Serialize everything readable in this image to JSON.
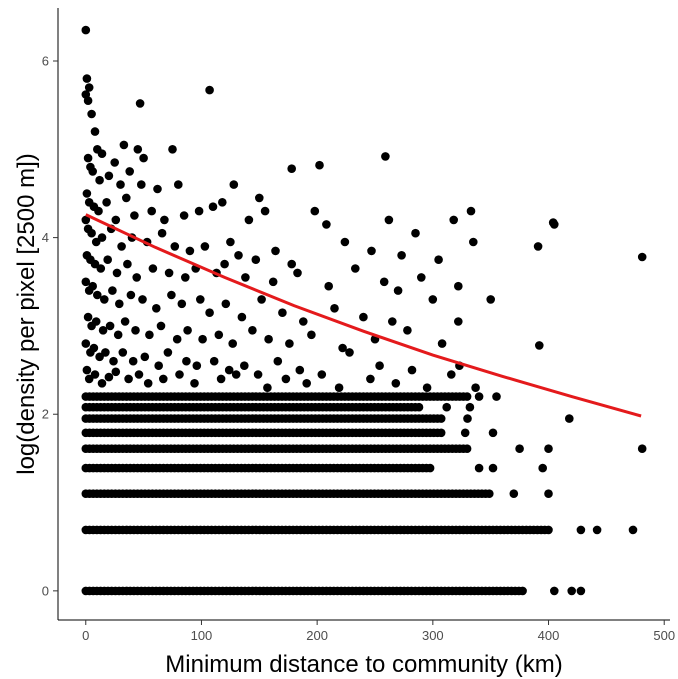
{
  "chart_data": {
    "type": "scatter",
    "title": "",
    "xlabel": "Minimum distance to community (km)",
    "ylabel": "log(density per pixel [2500 m])",
    "xlim": [
      -24,
      505
    ],
    "ylim": [
      -0.33,
      6.6
    ],
    "x_ticks": [
      0,
      100,
      200,
      300,
      400,
      500
    ],
    "y_ticks": [
      0,
      2,
      4,
      6
    ],
    "grid": false,
    "legend": "none",
    "point_color": "#000000",
    "fit_color": "#e41a1c",
    "points": [
      [
        0,
        6.35
      ],
      [
        1,
        5.8
      ],
      [
        3,
        5.7
      ],
      [
        0,
        5.62
      ],
      [
        2,
        5.55
      ],
      [
        5,
        5.4
      ],
      [
        8,
        5.2
      ],
      [
        47,
        5.52
      ],
      [
        107,
        5.67
      ],
      [
        10,
        5.0
      ],
      [
        14,
        4.95
      ],
      [
        25,
        4.85
      ],
      [
        33,
        5.05
      ],
      [
        45,
        5.0
      ],
      [
        50,
        4.9
      ],
      [
        75,
        5.0
      ],
      [
        178,
        4.78
      ],
      [
        202,
        4.82
      ],
      [
        259,
        4.92
      ],
      [
        2,
        4.9
      ],
      [
        4,
        4.8
      ],
      [
        6,
        4.75
      ],
      [
        12,
        4.65
      ],
      [
        20,
        4.7
      ],
      [
        30,
        4.6
      ],
      [
        38,
        4.75
      ],
      [
        48,
        4.6
      ],
      [
        62,
        4.55
      ],
      [
        80,
        4.6
      ],
      [
        128,
        4.6
      ],
      [
        150,
        4.45
      ],
      [
        1,
        4.5
      ],
      [
        3,
        4.4
      ],
      [
        7,
        4.35
      ],
      [
        11,
        4.3
      ],
      [
        18,
        4.4
      ],
      [
        26,
        4.2
      ],
      [
        35,
        4.45
      ],
      [
        42,
        4.25
      ],
      [
        57,
        4.3
      ],
      [
        68,
        4.2
      ],
      [
        85,
        4.25
      ],
      [
        98,
        4.3
      ],
      [
        110,
        4.35
      ],
      [
        118,
        4.4
      ],
      [
        141,
        4.2
      ],
      [
        155,
        4.3
      ],
      [
        198,
        4.3
      ],
      [
        208,
        4.15
      ],
      [
        262,
        4.2
      ],
      [
        285,
        4.05
      ],
      [
        318,
        4.2
      ],
      [
        333,
        4.3
      ],
      [
        404,
        4.17
      ],
      [
        405,
        4.15
      ],
      [
        481,
        3.78
      ],
      [
        0,
        4.2
      ],
      [
        2,
        4.1
      ],
      [
        5,
        4.05
      ],
      [
        9,
        3.95
      ],
      [
        14,
        4.0
      ],
      [
        22,
        4.1
      ],
      [
        31,
        3.9
      ],
      [
        40,
        4.0
      ],
      [
        53,
        3.95
      ],
      [
        66,
        4.05
      ],
      [
        77,
        3.9
      ],
      [
        90,
        3.85
      ],
      [
        103,
        3.9
      ],
      [
        125,
        3.95
      ],
      [
        132,
        3.8
      ],
      [
        147,
        3.75
      ],
      [
        164,
        3.85
      ],
      [
        178,
        3.7
      ],
      [
        224,
        3.95
      ],
      [
        247,
        3.85
      ],
      [
        273,
        3.8
      ],
      [
        305,
        3.75
      ],
      [
        335,
        3.95
      ],
      [
        391,
        3.9
      ],
      [
        1,
        3.8
      ],
      [
        4,
        3.75
      ],
      [
        8,
        3.7
      ],
      [
        13,
        3.65
      ],
      [
        19,
        3.75
      ],
      [
        27,
        3.6
      ],
      [
        36,
        3.7
      ],
      [
        44,
        3.55
      ],
      [
        58,
        3.65
      ],
      [
        72,
        3.6
      ],
      [
        86,
        3.55
      ],
      [
        95,
        3.65
      ],
      [
        113,
        3.6
      ],
      [
        120,
        3.7
      ],
      [
        138,
        3.55
      ],
      [
        162,
        3.5
      ],
      [
        183,
        3.6
      ],
      [
        210,
        3.45
      ],
      [
        233,
        3.65
      ],
      [
        258,
        3.5
      ],
      [
        270,
        3.4
      ],
      [
        290,
        3.55
      ],
      [
        322,
        3.45
      ],
      [
        350,
        3.3
      ],
      [
        0,
        3.5
      ],
      [
        3,
        3.4
      ],
      [
        6,
        3.45
      ],
      [
        10,
        3.35
      ],
      [
        16,
        3.3
      ],
      [
        23,
        3.4
      ],
      [
        29,
        3.25
      ],
      [
        39,
        3.35
      ],
      [
        49,
        3.3
      ],
      [
        61,
        3.2
      ],
      [
        74,
        3.35
      ],
      [
        83,
        3.25
      ],
      [
        99,
        3.3
      ],
      [
        107,
        3.15
      ],
      [
        121,
        3.25
      ],
      [
        135,
        3.1
      ],
      [
        152,
        3.3
      ],
      [
        170,
        3.15
      ],
      [
        188,
        3.05
      ],
      [
        215,
        3.2
      ],
      [
        240,
        3.1
      ],
      [
        265,
        3.05
      ],
      [
        300,
        3.3
      ],
      [
        322,
        3.05
      ],
      [
        2,
        3.1
      ],
      [
        5,
        3.0
      ],
      [
        9,
        3.05
      ],
      [
        15,
        2.95
      ],
      [
        21,
        3.0
      ],
      [
        28,
        2.9
      ],
      [
        34,
        3.05
      ],
      [
        43,
        2.95
      ],
      [
        55,
        2.9
      ],
      [
        65,
        3.0
      ],
      [
        79,
        2.85
      ],
      [
        88,
        2.95
      ],
      [
        101,
        2.85
      ],
      [
        115,
        2.9
      ],
      [
        127,
        2.8
      ],
      [
        144,
        2.95
      ],
      [
        158,
        2.85
      ],
      [
        176,
        2.8
      ],
      [
        195,
        2.9
      ],
      [
        222,
        2.75
      ],
      [
        250,
        2.85
      ],
      [
        278,
        2.95
      ],
      [
        308,
        2.8
      ],
      [
        0,
        2.8
      ],
      [
        4,
        2.7
      ],
      [
        7,
        2.75
      ],
      [
        12,
        2.65
      ],
      [
        17,
        2.7
      ],
      [
        24,
        2.6
      ],
      [
        32,
        2.7
      ],
      [
        41,
        2.6
      ],
      [
        51,
        2.65
      ],
      [
        63,
        2.55
      ],
      [
        71,
        2.7
      ],
      [
        87,
        2.6
      ],
      [
        96,
        2.55
      ],
      [
        111,
        2.6
      ],
      [
        124,
        2.5
      ],
      [
        137,
        2.55
      ],
      [
        149,
        2.45
      ],
      [
        166,
        2.6
      ],
      [
        185,
        2.5
      ],
      [
        204,
        2.45
      ],
      [
        228,
        2.7
      ],
      [
        254,
        2.55
      ],
      [
        282,
        2.5
      ],
      [
        316,
        2.45
      ],
      [
        323,
        2.55
      ],
      [
        392,
        2.78
      ],
      [
        1,
        2.5
      ],
      [
        3,
        2.4
      ],
      [
        8,
        2.45
      ],
      [
        14,
        2.35
      ],
      [
        20,
        2.42
      ],
      [
        26,
        2.48
      ],
      [
        37,
        2.4
      ],
      [
        46,
        2.45
      ],
      [
        54,
        2.35
      ],
      [
        67,
        2.4
      ],
      [
        81,
        2.45
      ],
      [
        94,
        2.35
      ],
      [
        117,
        2.4
      ],
      [
        130,
        2.45
      ],
      [
        157,
        2.3
      ],
      [
        173,
        2.4
      ],
      [
        191,
        2.35
      ],
      [
        219,
        2.3
      ],
      [
        246,
        2.4
      ],
      [
        268,
        2.35
      ],
      [
        295,
        2.3
      ],
      [
        337,
        2.3
      ]
    ],
    "bands": [
      {
        "y": 2.2,
        "x_max": 330,
        "extra": [
          340,
          355
        ]
      },
      {
        "y": 2.08,
        "x_max": 290,
        "extra": [
          312,
          332
        ]
      },
      {
        "y": 1.95,
        "x_max": 310,
        "extra": [
          330,
          418
        ]
      },
      {
        "y": 1.79,
        "x_max": 310,
        "extra": [
          328,
          352
        ]
      },
      {
        "y": 1.61,
        "x_max": 330,
        "extra": [
          375,
          400,
          481
        ]
      },
      {
        "y": 1.39,
        "x_max": 300,
        "extra": [
          340,
          352,
          395
        ]
      },
      {
        "y": 1.1,
        "x_max": 350,
        "extra": [
          370,
          400
        ]
      },
      {
        "y": 0.69,
        "x_max": 400,
        "extra": [
          428,
          442,
          473
        ]
      },
      {
        "y": 0.0,
        "x_max": 380,
        "extra": [
          405,
          420,
          428
        ]
      }
    ],
    "fit": {
      "x": [
        0,
        60,
        120,
        180,
        240,
        300,
        360,
        420,
        480
      ],
      "y": [
        4.26,
        3.89,
        3.55,
        3.23,
        2.94,
        2.67,
        2.43,
        2.2,
        1.98
      ]
    }
  }
}
